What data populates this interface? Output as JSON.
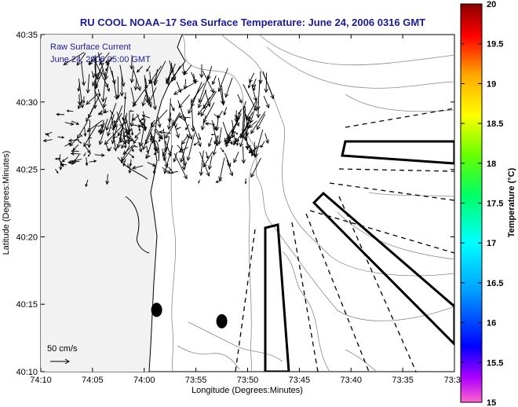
{
  "title": "RU COOL  NOAA–17  Sea Surface Temperature:  June 24, 2006 0316 GMT",
  "annotation": {
    "line1": "Raw Surface Current",
    "line2": "June 24, 2006 05:00 GMT"
  },
  "scale_label": "50 cm/s",
  "axes": {
    "xlabel": "Longitude (Degrees:Minutes)",
    "ylabel": "Latitude (Degrees:Minutes)",
    "x_ticks": [
      "74:10",
      "74:05",
      "74:00",
      "73:55",
      "73:50",
      "73:45",
      "73:40",
      "73:35",
      "73:3"
    ],
    "y_ticks": [
      "40:35",
      "40:30",
      "40:25",
      "40:20",
      "40:15",
      "40:10"
    ]
  },
  "colorbar": {
    "label": "Temperature (°C)",
    "ticks": [
      "20",
      "19.5",
      "19",
      "18.5",
      "18",
      "17.5",
      "17",
      "16.5",
      "16",
      "15.5",
      "15"
    ],
    "min": 15,
    "max": 20,
    "colors": [
      "#ff66cc",
      "#7f00ff",
      "#0000ff",
      "#00a0ff",
      "#00ffff",
      "#00ff66",
      "#66ff00",
      "#ffff00",
      "#ffaa00",
      "#ff0000",
      "#8b0000"
    ]
  },
  "chart_data": {
    "type": "scatter",
    "xlim": [
      -74.1667,
      -73.5
    ],
    "ylim": [
      40.1667,
      40.5833
    ],
    "grid": false,
    "legend": "none",
    "markers": [
      {
        "lon": -73.98,
        "lat": 40.243
      },
      {
        "lon": -73.875,
        "lat": 40.229
      }
    ]
  }
}
